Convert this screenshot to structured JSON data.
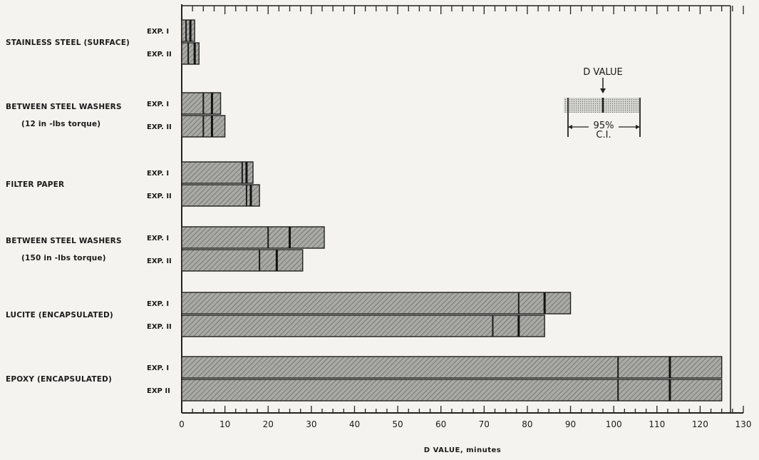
{
  "chart_data": {
    "type": "bar",
    "orientation": "horizontal",
    "xlabel": "D VALUE, minutes",
    "xlim": [
      0,
      130
    ],
    "x_ticks": [
      "0",
      "10",
      "20",
      "30",
      "40",
      "50",
      "60",
      "70",
      "80",
      "90",
      "100",
      "110",
      "120",
      "130"
    ],
    "bar_style": "hatched gray with 95% confidence interval markers",
    "categories": [
      {
        "label_lines": [
          "STAINLESS STEEL (SURFACE)"
        ],
        "series": [
          {
            "name": "EXP. I",
            "d_value": 2,
            "ci": [
              1,
              3
            ]
          },
          {
            "name": "EXP. II",
            "d_value": 3,
            "ci": [
              1.5,
              4
            ]
          }
        ]
      },
      {
        "label_lines": [
          "BETWEEN STEEL WASHERS",
          "(12 in -lbs torque)"
        ],
        "series": [
          {
            "name": "EXP. I",
            "d_value": 7,
            "ci": [
              5,
              9
            ]
          },
          {
            "name": "EXP. II",
            "d_value": 7,
            "ci": [
              5,
              10
            ]
          }
        ]
      },
      {
        "label_lines": [
          "FILTER PAPER"
        ],
        "series": [
          {
            "name": "EXP. I",
            "d_value": 15,
            "ci": [
              14,
              16.5
            ]
          },
          {
            "name": "EXP. II",
            "d_value": 16,
            "ci": [
              15,
              18
            ]
          }
        ]
      },
      {
        "label_lines": [
          "BETWEEN STEEL WASHERS",
          "(150 in -lbs torque)"
        ],
        "series": [
          {
            "name": "EXP. I",
            "d_value": 25,
            "ci": [
              20,
              33
            ]
          },
          {
            "name": "EXP. II",
            "d_value": 22,
            "ci": [
              18,
              28
            ]
          }
        ]
      },
      {
        "label_lines": [
          "LUCITE (ENCAPSULATED)"
        ],
        "series": [
          {
            "name": "EXP. I",
            "d_value": 84,
            "ci": [
              78,
              90
            ]
          },
          {
            "name": "EXP. II",
            "d_value": 78,
            "ci": [
              72,
              84
            ]
          }
        ]
      },
      {
        "label_lines": [
          "EPOXY (ENCAPSULATED)"
        ],
        "series": [
          {
            "name": "EXP. I",
            "d_value": 113,
            "ci": [
              101,
              125
            ]
          },
          {
            "name": "EXP II",
            "d_value": 113,
            "ci": [
              101,
              125
            ]
          }
        ]
      }
    ],
    "legend": {
      "title": "D VALUE",
      "ci_label_lines": [
        "95%",
        "C.I."
      ],
      "position": "upper-right"
    }
  }
}
